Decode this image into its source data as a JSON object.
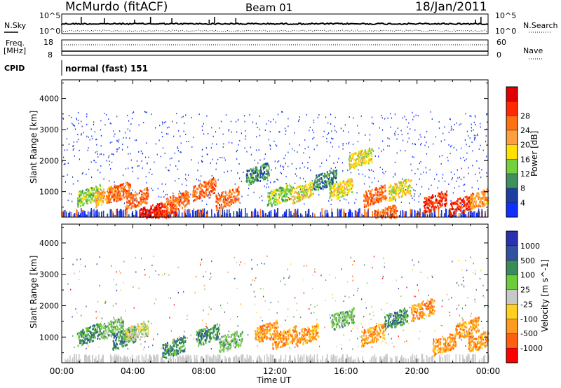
{
  "header": {
    "station": "McMurdo (fitACF)",
    "beam": "Beam 01",
    "date": "18/Jan/2011"
  },
  "top_panel": {
    "left_label": "N.Sky",
    "left_ticks": [
      "10^5",
      "10^0"
    ],
    "right_ticks": [
      "10^5",
      "10^0"
    ],
    "right_label": "N.Search",
    "freq_label_line1": "Freq.",
    "freq_label_line2": "[MHz]",
    "freq_ticks": [
      "18",
      "8"
    ],
    "nave_ticks": [
      "60",
      "0"
    ],
    "nave_label": "Nave",
    "cpid_label": "CPID",
    "cpid_value": "normal (fast) 151"
  },
  "colors": {
    "power_scale": [
      "#1030ff",
      "#1f3fa0",
      "#3f8f5f",
      "#74d13d",
      "#ffe000",
      "#ffa040",
      "#ff7010",
      "#ff2a00",
      "#e00000"
    ],
    "velocity_scale": [
      "#2a30b0",
      "#3050a0",
      "#3a8a5a",
      "#6ccc3a",
      "#c8c8c8",
      "#ffd020",
      "#ff9a20",
      "#ff6010",
      "#ff0000"
    ]
  },
  "chart_data": [
    {
      "type": "heatmap",
      "title": "",
      "xlabel": "Time UT",
      "ylabel": "Slant Range [km]",
      "colorbar_label": "Power [dB]",
      "x_ticks": [
        "00:00",
        "04:00",
        "08:00",
        "12:00",
        "16:00",
        "20:00",
        "00:00"
      ],
      "y_ticks": [
        1000,
        2000,
        3000,
        4000
      ],
      "ylim": [
        180,
        4600
      ],
      "colorbar_ticks": [
        4,
        8,
        12,
        16,
        20,
        24,
        28
      ],
      "clim": [
        0,
        30
      ],
      "blobs": [
        {
          "t": 1.5,
          "r": 900,
          "v": 10
        },
        {
          "t": 2.5,
          "r": 900,
          "v": 18
        },
        {
          "t": 3.2,
          "r": 1000,
          "v": 22
        },
        {
          "t": 4.2,
          "r": 800,
          "v": 20
        },
        {
          "t": 5.0,
          "r": 350,
          "v": 28
        },
        {
          "t": 5.8,
          "r": 400,
          "v": 26
        },
        {
          "t": 6.5,
          "r": 700,
          "v": 22
        },
        {
          "t": 8.0,
          "r": 1100,
          "v": 20
        },
        {
          "t": 9.3,
          "r": 800,
          "v": 22
        },
        {
          "t": 11.0,
          "r": 1600,
          "v": 8
        },
        {
          "t": 12.2,
          "r": 900,
          "v": 12
        },
        {
          "t": 13.5,
          "r": 1000,
          "v": 14
        },
        {
          "t": 14.8,
          "r": 1400,
          "v": 8
        },
        {
          "t": 15.7,
          "r": 1100,
          "v": 14
        },
        {
          "t": 16.8,
          "r": 2100,
          "v": 16
        },
        {
          "t": 17.6,
          "r": 900,
          "v": 20
        },
        {
          "t": 18.2,
          "r": 300,
          "v": 22
        },
        {
          "t": 19.0,
          "r": 1100,
          "v": 16
        },
        {
          "t": 21.0,
          "r": 700,
          "v": 24
        },
        {
          "t": 22.5,
          "r": 600,
          "v": 24
        },
        {
          "t": 23.6,
          "r": 800,
          "v": 18
        }
      ]
    },
    {
      "type": "heatmap",
      "title": "",
      "xlabel": "Time UT",
      "ylabel": "Slant Range [km]",
      "colorbar_label": "Velocity [m s^-1]",
      "x_ticks": [
        "00:00",
        "04:00",
        "08:00",
        "12:00",
        "16:00",
        "20:00",
        "00:00"
      ],
      "y_ticks": [
        1000,
        2000,
        3000,
        4000
      ],
      "ylim": [
        180,
        4600
      ],
      "colorbar_ticks": [
        "1000",
        "500",
        "100",
        "25",
        "-25",
        "-100",
        "-500",
        "-1000"
      ],
      "blobs": [
        {
          "t": 1.5,
          "r": 1100,
          "v": 150
        },
        {
          "t": 2.8,
          "r": 1300,
          "v": 50
        },
        {
          "t": 3.5,
          "r": 1000,
          "v": 200
        },
        {
          "t": 4.2,
          "r": 1200,
          "v": 0
        },
        {
          "t": 6.3,
          "r": 700,
          "v": 150
        },
        {
          "t": 8.2,
          "r": 1100,
          "v": 200
        },
        {
          "t": 9.5,
          "r": 900,
          "v": 100
        },
        {
          "t": 11.5,
          "r": 1200,
          "v": -150
        },
        {
          "t": 12.5,
          "r": 1000,
          "v": -200
        },
        {
          "t": 13.8,
          "r": 1100,
          "v": -300
        },
        {
          "t": 15.8,
          "r": 1600,
          "v": 100
        },
        {
          "t": 17.5,
          "r": 1100,
          "v": -250
        },
        {
          "t": 18.8,
          "r": 1600,
          "v": 150
        },
        {
          "t": 20.3,
          "r": 1900,
          "v": -300
        },
        {
          "t": 21.5,
          "r": 800,
          "v": -400
        },
        {
          "t": 22.8,
          "r": 1300,
          "v": -200
        },
        {
          "t": 23.5,
          "r": 900,
          "v": -100
        }
      ]
    }
  ]
}
